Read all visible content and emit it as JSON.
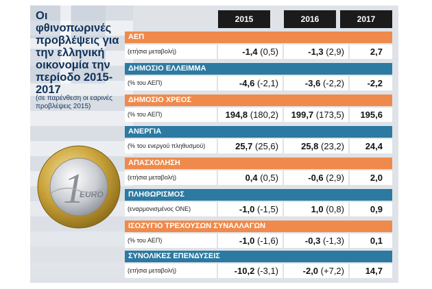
{
  "title": "Οι φθινοπωρινές προβλέψεις για την ελληνική οικονομία την περίοδο 2015-2017",
  "subtitle": "(σε παρένθεση οι εαρινές προβλέψεις 2015)",
  "years": [
    "2015",
    "2016",
    "2017"
  ],
  "colors": {
    "orange": "#ef8a4c",
    "blue": "#2c7aa1",
    "header": "#1b1b1b",
    "title": "#10325a"
  },
  "coin_icon": "euro-coin-icon",
  "coin": {
    "numeral": "1",
    "word": "EURO"
  },
  "rows": [
    {
      "label": "ΑΕΠ",
      "unit": "(ετήσια μεταβολή)",
      "v2015": "-1,4",
      "p2015": "(0,5)",
      "v2016": "-1,3",
      "p2016": "(2,9)",
      "v2017": "2,7"
    },
    {
      "label": "ΔΗΜΟΣΙΟ ΕΛΛΕΙΜΜΑ",
      "unit": "(% του ΑΕΠ)",
      "v2015": "-4,6",
      "p2015": "(-2,1)",
      "v2016": "-3,6",
      "p2016": "(-2,2)",
      "v2017": "-2,2"
    },
    {
      "label": "ΔΗΜΟΣΙΟ ΧΡΕΟΣ",
      "unit": "(% του ΑΕΠ)",
      "v2015": "194,8",
      "p2015": "(180,2)",
      "v2016": "199,7",
      "p2016": "(173,5)",
      "v2017": "195,6"
    },
    {
      "label": "ΑΝΕΡΓΙΑ",
      "unit": "(% του ενεργού πληθυσμού)",
      "v2015": "25,7",
      "p2015": "(25,6)",
      "v2016": "25,8",
      "p2016": "(23,2)",
      "v2017": "24,4"
    },
    {
      "label": "ΑΠΑΣΧΟΛΗΣΗ",
      "unit": "(ετήσια μεταβολή)",
      "v2015": "0,4",
      "p2015": "(0,5)",
      "v2016": "-0,6",
      "p2016": "(2,9)",
      "v2017": "2,0"
    },
    {
      "label": "ΠΛΗΘΩΡΙΣΜΟΣ",
      "unit": "(εναρμονισμένος ΟΝΕ)",
      "v2015": "-1,0",
      "p2015": "(-1,5)",
      "v2016": "1,0",
      "p2016": "(0,8)",
      "v2017": "0,9"
    },
    {
      "label": "ΙΣΟΖΥΓΙΟ ΤΡΕΧΟΥΣΩΝ ΣΥΝΑΛΛΑΓΩΝ",
      "unit": "(% του ΑΕΠ)",
      "v2015": "-1,0",
      "p2015": "(-1,6)",
      "v2016": "-0,3",
      "p2016": "(-1,3)",
      "v2017": "0,1"
    },
    {
      "label": "ΣΥΝΟΛΙΚΕΣ ΕΠΕΝΔΥΣΕΙΣ",
      "unit": "(ετήσια μεταβολή)",
      "v2015": "-10,2",
      "p2015": "(-3,1)",
      "v2016": "-2,0",
      "p2016": "(+7,2)",
      "v2017": "14,7"
    }
  ]
}
